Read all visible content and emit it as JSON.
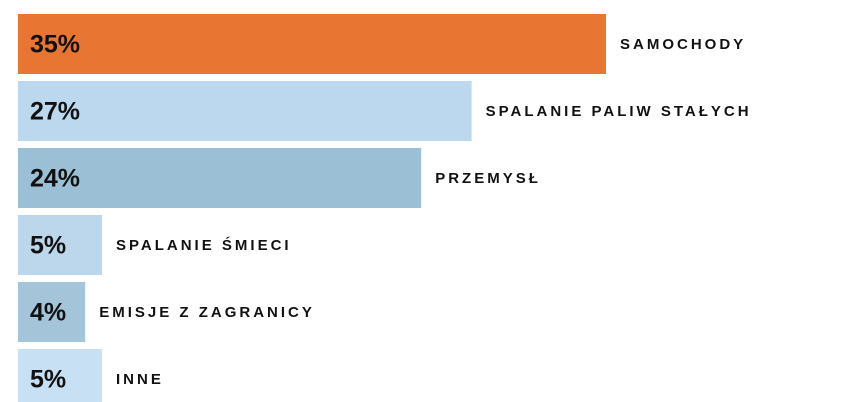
{
  "chart_data": {
    "type": "bar",
    "orientation": "horizontal",
    "categories": [
      "SAMOCHODY",
      "SPALANIE PALIW STAŁYCH",
      "PRZEMYSŁ",
      "SPALANIE ŚMIECI",
      "EMISJE Z ZAGRANICY",
      "INNE"
    ],
    "values": [
      35,
      27,
      24,
      5,
      4,
      5
    ],
    "value_labels": [
      "35%",
      "27%",
      "24%",
      "5%",
      "4%",
      "5%"
    ],
    "colors": [
      "#e97532",
      "#bcd8ee",
      "#9bbfd5",
      "#bcd6eb",
      "#a4c4da",
      "#c7e0f3"
    ]
  }
}
